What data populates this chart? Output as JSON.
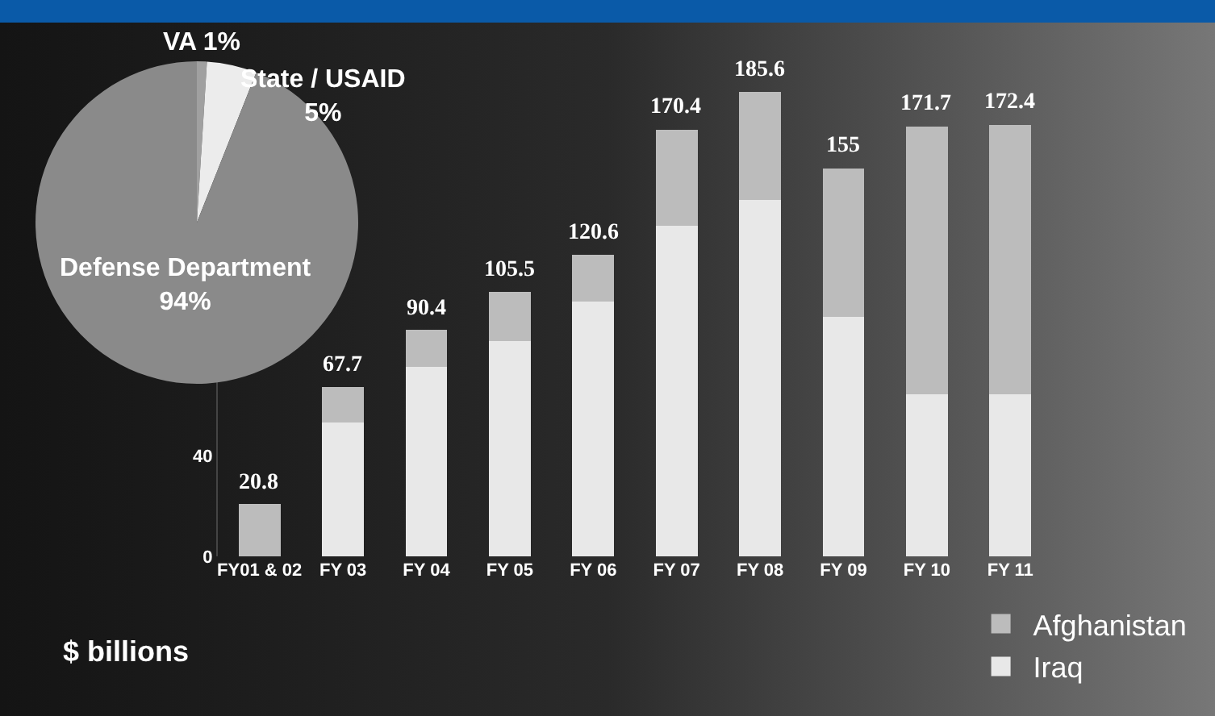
{
  "chart_data": [
    {
      "type": "pie",
      "categories": [
        "VA",
        "State / USAID",
        "Defense Department"
      ],
      "values": [
        1,
        5,
        94
      ],
      "colors": [
        "#a0a0a0",
        "#ececec",
        "#8a8a8a"
      ],
      "value_labels": [
        "1%",
        "5%",
        "94%"
      ],
      "legend": false
    },
    {
      "type": "bar",
      "stacked": true,
      "categories": [
        "FY01 & 02",
        "FY 03",
        "FY 04",
        "FY 05",
        "FY 06",
        "FY 07",
        "FY 08",
        "FY 09",
        "FY 10",
        "FY 11"
      ],
      "series": [
        {
          "name": "Iraq",
          "color": "#e8e8e8",
          "values": [
            0,
            53.3,
            75.8,
            86,
            101.8,
            132,
            142.4,
            95.8,
            64.8,
            64.8
          ]
        },
        {
          "name": "Afghanistan",
          "color": "#bcbcbc",
          "values": [
            20.8,
            14.4,
            14.6,
            19.5,
            18.8,
            38.4,
            43.2,
            59.2,
            106.9,
            107.6
          ]
        }
      ],
      "totals": [
        "20.8",
        "67.7",
        "90.4",
        "105.5",
        "120.6",
        "170.4",
        "185.6",
        "155",
        "171.7",
        "172.4"
      ],
      "ylim": [
        0,
        190
      ],
      "yticks": [
        0,
        40
      ],
      "grid": false,
      "legend": "bottom right",
      "annotations": [
        "$ billions"
      ]
    }
  ]
}
